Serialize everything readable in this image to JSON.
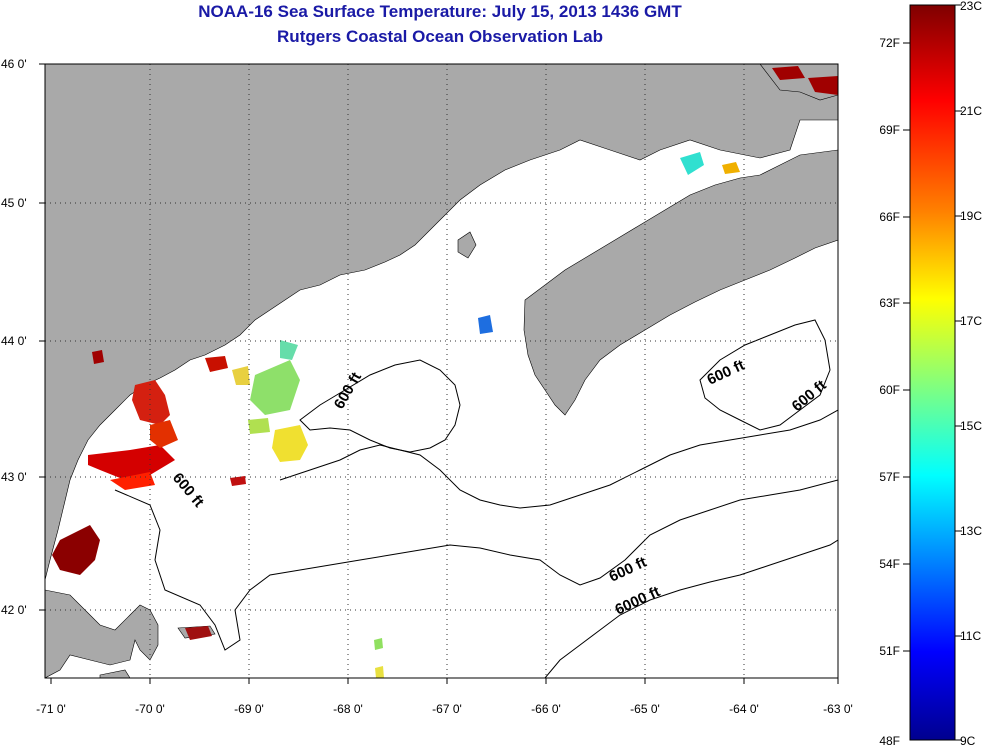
{
  "header": {
    "title": "NOAA-16 Sea Surface Temperature:  July 15, 2013 1436 GMT",
    "subtitle": "Rutgers Coastal Ocean Observation Lab"
  },
  "map": {
    "lon_labels": [
      "-71 0'",
      "-70 0'",
      "-69 0'",
      "-68 0'",
      "-67 0'",
      "-66 0'",
      "-65 0'",
      "-64 0'",
      "-63 0'"
    ],
    "lat_labels": [
      "46 0'",
      "45 0'",
      "44 0'",
      "43 0'",
      "42 0'"
    ],
    "contour_labels": [
      "600 ft",
      "600 ft",
      "600 ft",
      "600 ft",
      "600 ft",
      "6000 ft"
    ],
    "land_color": "#a9a9a9",
    "water_color": "#ffffff",
    "grid": "dotted"
  },
  "colorbar": {
    "fahrenheit_labels": [
      "72F",
      "69F",
      "66F",
      "63F",
      "60F",
      "57F",
      "54F",
      "51F",
      "48F"
    ],
    "celsius_labels": [
      "23C",
      "21C",
      "19C",
      "17C",
      "15C",
      "13C",
      "11C",
      "9C"
    ],
    "colors": [
      "#7f0000",
      "#ff0000",
      "#ff8000",
      "#ffff00",
      "#80ff80",
      "#00ffff",
      "#0080ff",
      "#0000ff",
      "#00008f"
    ]
  }
}
